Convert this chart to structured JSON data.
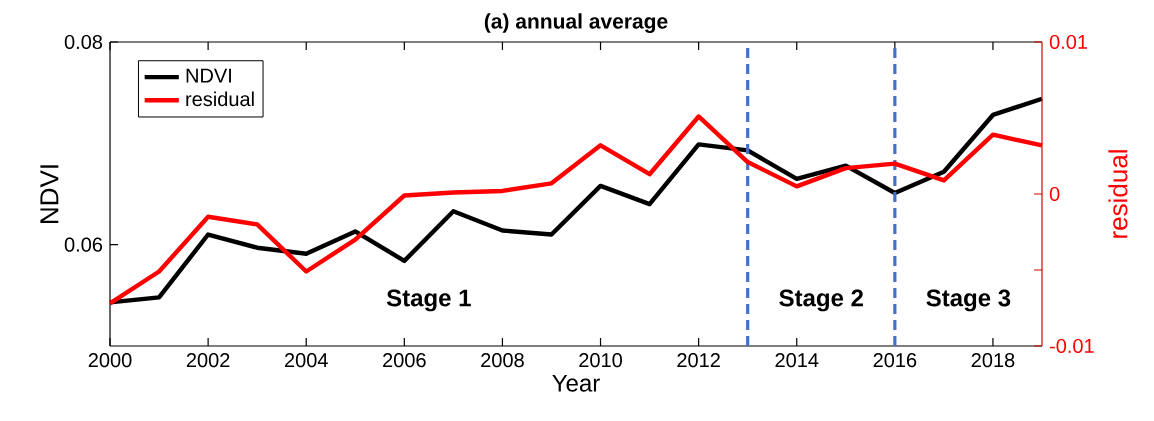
{
  "chart_data": {
    "type": "line",
    "title": "(a) annual average",
    "xlabel": "Year",
    "ylabel": "NDVI",
    "y2label": "residual",
    "x": [
      2000,
      2001,
      2002,
      2003,
      2004,
      2005,
      2006,
      2007,
      2008,
      2009,
      2010,
      2011,
      2012,
      2013,
      2014,
      2015,
      2016,
      2017,
      2018,
      2019
    ],
    "series": [
      {
        "name": "NDVI",
        "color": "#000000",
        "values": [
          0.0543,
          0.0548,
          0.061,
          0.0597,
          0.0591,
          0.0613,
          0.0584,
          0.0633,
          0.0614,
          0.061,
          0.0658,
          0.064,
          0.0699,
          0.0693,
          0.0665,
          0.0678,
          0.0651,
          0.0672,
          0.0728,
          0.0744
        ]
      },
      {
        "name": "residual",
        "color": "#ff0000",
        "axis": "y2",
        "values": [
          -0.0072,
          -0.0051,
          -0.0015,
          -0.002,
          -0.0051,
          -0.003,
          -0.0001,
          0.0001,
          0.0002,
          0.0007,
          0.0032,
          0.0013,
          0.0051,
          0.0021,
          0.0005,
          0.0017,
          0.002,
          0.0009,
          0.0039,
          0.0032
        ]
      }
    ],
    "xlim": [
      2000,
      2019
    ],
    "xticks": [
      2000,
      2002,
      2004,
      2006,
      2008,
      2010,
      2012,
      2014,
      2016,
      2018
    ],
    "ylim": [
      0.05,
      0.08
    ],
    "yticks": [
      0.06,
      0.08
    ],
    "y2lim": [
      -0.01,
      0.01
    ],
    "y2ticks": [
      {
        "value": -0.01,
        "label": "-0.01"
      },
      {
        "value": -0.005,
        "label": null
      },
      0,
      0.01
    ],
    "ref_lines": [
      {
        "axis": "x",
        "value": 2013,
        "color": "#4472c4",
        "line_style": "dashed"
      },
      {
        "axis": "x",
        "value": 2016,
        "color": "#4472c4",
        "line_style": "dashed"
      }
    ],
    "annotations": [
      "Stage 1",
      "Stage 2",
      "Stage 3"
    ],
    "legend": "top left",
    "grid": false,
    "marker": "none",
    "line_style": "solid"
  }
}
